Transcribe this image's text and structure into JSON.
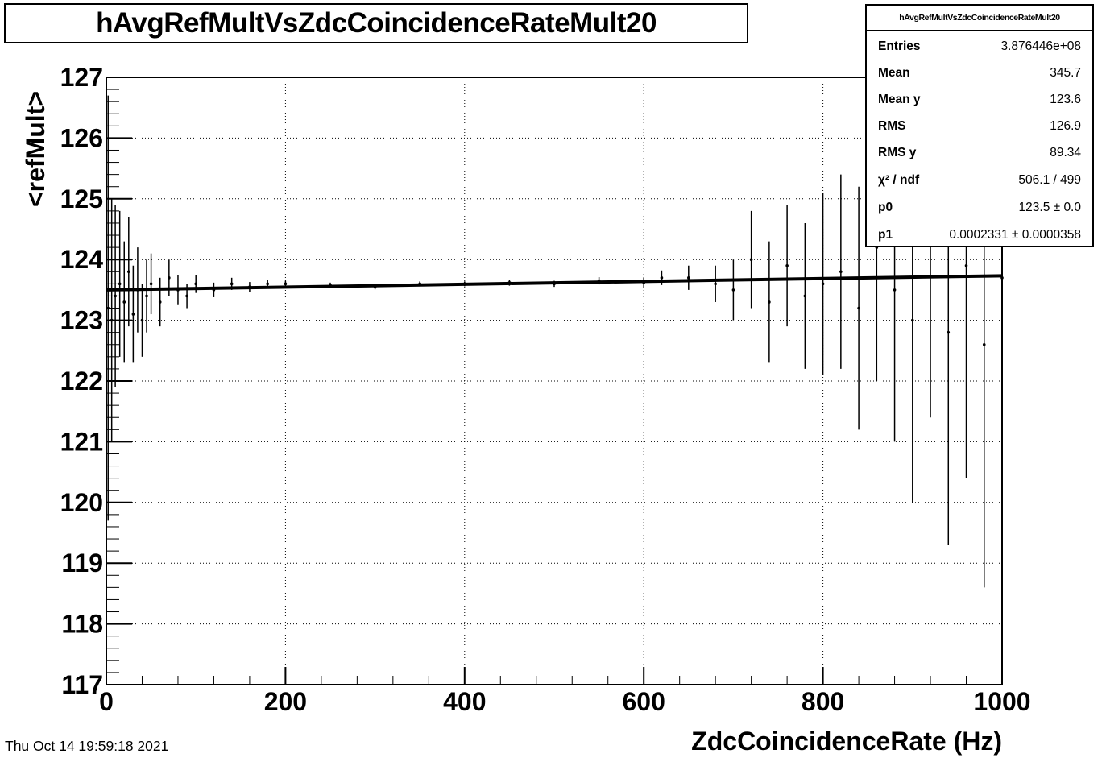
{
  "chart_data": {
    "type": "scatter",
    "title": "hAvgRefMultVsZdcCoincidenceRateMult20",
    "xlabel": "ZdcCoincidenceRate (Hz)",
    "ylabel": "<refMult>",
    "xlim": [
      0,
      1000
    ],
    "ylim": [
      117,
      127
    ],
    "x_ticks": [
      "0",
      "200",
      "400",
      "600",
      "800",
      "1000"
    ],
    "y_ticks": [
      "117",
      "118",
      "119",
      "120",
      "121",
      "122",
      "123",
      "124",
      "125",
      "126",
      "127"
    ],
    "grid": true,
    "fit": {
      "p0": 123.5,
      "p1": 0.0002331
    },
    "series": [
      {
        "x": [
          2,
          6,
          10,
          15,
          20,
          25,
          30,
          35,
          40,
          45,
          50,
          60,
          70,
          80,
          90,
          100,
          120,
          140,
          160,
          180,
          200,
          250,
          300,
          350,
          400,
          450,
          500,
          550,
          600,
          620,
          650,
          680,
          700,
          720,
          740,
          760,
          780,
          800,
          820,
          840,
          860,
          880,
          900,
          920,
          940,
          960,
          980,
          1000
        ],
        "y": [
          123.2,
          123.0,
          123.4,
          123.6,
          123.3,
          123.8,
          123.1,
          123.5,
          123.0,
          123.4,
          123.6,
          123.3,
          123.7,
          123.5,
          123.4,
          123.6,
          123.5,
          123.6,
          123.55,
          123.6,
          123.6,
          123.58,
          123.55,
          123.6,
          123.6,
          123.62,
          123.6,
          123.65,
          123.62,
          123.7,
          123.7,
          123.6,
          123.5,
          124.0,
          123.3,
          123.9,
          123.4,
          123.6,
          123.8,
          123.2,
          124.2,
          123.5,
          123.0,
          124.4,
          122.8,
          123.9,
          122.6,
          123.7
        ],
        "err": [
          3.5,
          2.0,
          1.5,
          1.2,
          1.0,
          0.9,
          0.8,
          0.7,
          0.6,
          0.6,
          0.5,
          0.4,
          0.3,
          0.25,
          0.2,
          0.15,
          0.12,
          0.1,
          0.08,
          0.06,
          0.05,
          0.04,
          0.04,
          0.04,
          0.04,
          0.05,
          0.05,
          0.06,
          0.08,
          0.12,
          0.2,
          0.3,
          0.5,
          0.8,
          1.0,
          1.0,
          1.2,
          1.5,
          1.6,
          2.0,
          2.2,
          2.5,
          3.0,
          3.0,
          3.5,
          3.5,
          4.0,
          1.0
        ]
      }
    ]
  },
  "stats": {
    "header": "hAvgRefMultVsZdcCoincidenceRateMult20",
    "rows": [
      {
        "k": "Entries",
        "v": "3.876446e+08"
      },
      {
        "k": "Mean",
        "v": "345.7"
      },
      {
        "k": "Mean y",
        "v": "123.6"
      },
      {
        "k": "RMS",
        "v": "126.9"
      },
      {
        "k": "RMS y",
        "v": "89.34"
      },
      {
        "k": "χ² / ndf",
        "v": "506.1 / 499"
      },
      {
        "k": "p0",
        "v": "123.5 ± 0.0"
      },
      {
        "k": "p1",
        "v": "0.0002331 ± 0.0000358"
      }
    ]
  },
  "timestamp": "Thu Oct 14 19:59:18 2021"
}
